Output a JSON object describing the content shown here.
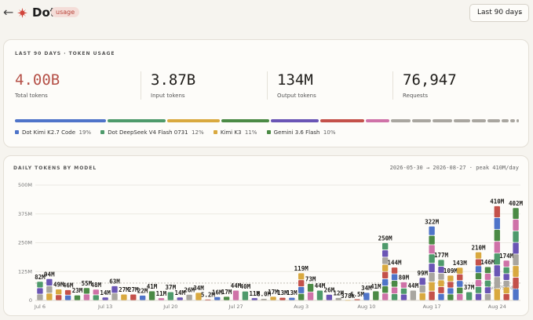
{
  "header": {
    "back_icon": "arrow-left-icon",
    "logo_icon": "starburst-logo-icon",
    "brand": "Dot",
    "badge": "usage",
    "range_label": "Last 90 days",
    "range_chevron_icon": "chevron-down-icon"
  },
  "summary": {
    "title": "LAST 90 DAYS · TOKEN USAGE",
    "stats": [
      {
        "value": "4.00B",
        "label": "Total tokens"
      },
      {
        "value": "3.87B",
        "label": "Input tokens"
      },
      {
        "value": "134M",
        "label": "Output tokens"
      },
      {
        "value": "76,947",
        "label": "Requests"
      }
    ],
    "accent_color": "#b55148",
    "usage_segments": [
      {
        "share": 19,
        "color": "#4f74c9"
      },
      {
        "share": 12,
        "color": "#4e9a6b"
      },
      {
        "share": 11,
        "color": "#d9a93f"
      },
      {
        "share": 10,
        "color": "#4b8a45"
      },
      {
        "share": 10,
        "color": "#6a55b5"
      },
      {
        "share": 9,
        "color": "#c4514a"
      },
      {
        "share": 5,
        "color": "#cf72a8"
      },
      {
        "share": 4,
        "color": "#a9a6a0"
      },
      {
        "share": 4,
        "color": "#a9a6a0"
      },
      {
        "share": 4,
        "color": "#a9a6a0"
      },
      {
        "share": 3.5,
        "color": "#a9a6a0"
      },
      {
        "share": 3,
        "color": "#a9a6a0"
      },
      {
        "share": 2.5,
        "color": "#a9a6a0"
      },
      {
        "share": 1.5,
        "color": "#a9a6a0"
      },
      {
        "share": 1,
        "color": "#a9a6a0"
      },
      {
        "share": 0.5,
        "color": "#a9a6a0"
      }
    ],
    "legend": [
      {
        "label": "Dot Kimi K2.7 Code",
        "pct": "19%",
        "color": "#4f74c9"
      },
      {
        "label": "Dot DeepSeek V4 Flash 0731",
        "pct": "12%",
        "color": "#4e9a6b"
      },
      {
        "label": "Kimi K3",
        "pct": "11%",
        "color": "#d9a93f"
      },
      {
        "label": "Gemini 3.6 Flash",
        "pct": "10%",
        "color": "#4b8a45"
      }
    ]
  },
  "daily": {
    "title": "DAILY TOKENS BY MODEL",
    "range_text": "2026-05-30 → 2026-08-27 · peak 410M/day",
    "avg_label": "avg 75M/day"
  },
  "chart_data": {
    "type": "bar",
    "stacked": true,
    "y_unit": "M tokens",
    "ylim": [
      0,
      500
    ],
    "y_ticks": [
      "0",
      "125M",
      "250M",
      "375M",
      "500M"
    ],
    "y_tick_values": [
      0,
      125,
      250,
      375,
      500
    ],
    "x_tick_labels": [
      "Jul 6",
      "Jul 13",
      "Jul 20",
      "Jul 27",
      "Aug 3",
      "Aug 10",
      "Aug 17",
      "Aug 24"
    ],
    "x_tick_day_index": [
      0,
      7,
      14,
      21,
      28,
      35,
      42,
      49
    ],
    "average": 75,
    "grid": true,
    "days": [
      {
        "label": "82M",
        "total": 82
      },
      {
        "label": "94M",
        "total": 94
      },
      {
        "label": "49M",
        "total": 49
      },
      {
        "label": "46M",
        "total": 46
      },
      {
        "label": "23M",
        "total": 23
      },
      {
        "label": "55M",
        "total": 55
      },
      {
        "label": "48M",
        "total": 48
      },
      {
        "label": "14M",
        "total": 14
      },
      {
        "label": "63M",
        "total": 63
      },
      {
        "label": "27M",
        "total": 27
      },
      {
        "label": "27M",
        "total": 27
      },
      {
        "label": "22M",
        "total": 22
      },
      {
        "label": "41M",
        "total": 41
      },
      {
        "label": "11M",
        "total": 11
      },
      {
        "label": "37M",
        "total": 37
      },
      {
        "label": "14M",
        "total": 14
      },
      {
        "label": "26M",
        "total": 26
      },
      {
        "label": "34M",
        "total": 34
      },
      {
        "label": "5.2M",
        "total": 5.2
      },
      {
        "label": "16M",
        "total": 16
      },
      {
        "label": "17M",
        "total": 17
      },
      {
        "label": "44M",
        "total": 44
      },
      {
        "label": "40M",
        "total": 40
      },
      {
        "label": "11M",
        "total": 11
      },
      {
        "label": "8.0M",
        "total": 8
      },
      {
        "label": "17M",
        "total": 17
      },
      {
        "label": "13M",
        "total": 13
      },
      {
        "label": "13M",
        "total": 13
      },
      {
        "label": "119M",
        "total": 119
      },
      {
        "label": "73M",
        "total": 73
      },
      {
        "label": "44M",
        "total": 44
      },
      {
        "label": "26M",
        "total": 26
      },
      {
        "label": "12M",
        "total": 12
      },
      {
        "label": "378k",
        "total": 0.4
      },
      {
        "label": "6.5M",
        "total": 6.5
      },
      {
        "label": "34M",
        "total": 34
      },
      {
        "label": "41M",
        "total": 41
      },
      {
        "label": "250M",
        "total": 250
      },
      {
        "label": "144M",
        "total": 144
      },
      {
        "label": "80M",
        "total": 80
      },
      {
        "label": "44M",
        "total": 44
      },
      {
        "label": "99M",
        "total": 99
      },
      {
        "label": "322M",
        "total": 322
      },
      {
        "label": "177M",
        "total": 177
      },
      {
        "label": "109M",
        "total": 109
      },
      {
        "label": "143M",
        "total": 143
      },
      {
        "label": "37M",
        "total": 37
      },
      {
        "label": "210M",
        "total": 210
      },
      {
        "label": "146M",
        "total": 146
      },
      {
        "label": "410M",
        "total": 410
      },
      {
        "label": "174M",
        "total": 174
      },
      {
        "label": "402M",
        "total": 402
      }
    ],
    "series_colors": [
      "#a9a6a0",
      "#4f74c9",
      "#4e9a6b",
      "#d9a93f",
      "#4b8a45",
      "#6a55b5",
      "#c4514a",
      "#cf72a8"
    ]
  }
}
